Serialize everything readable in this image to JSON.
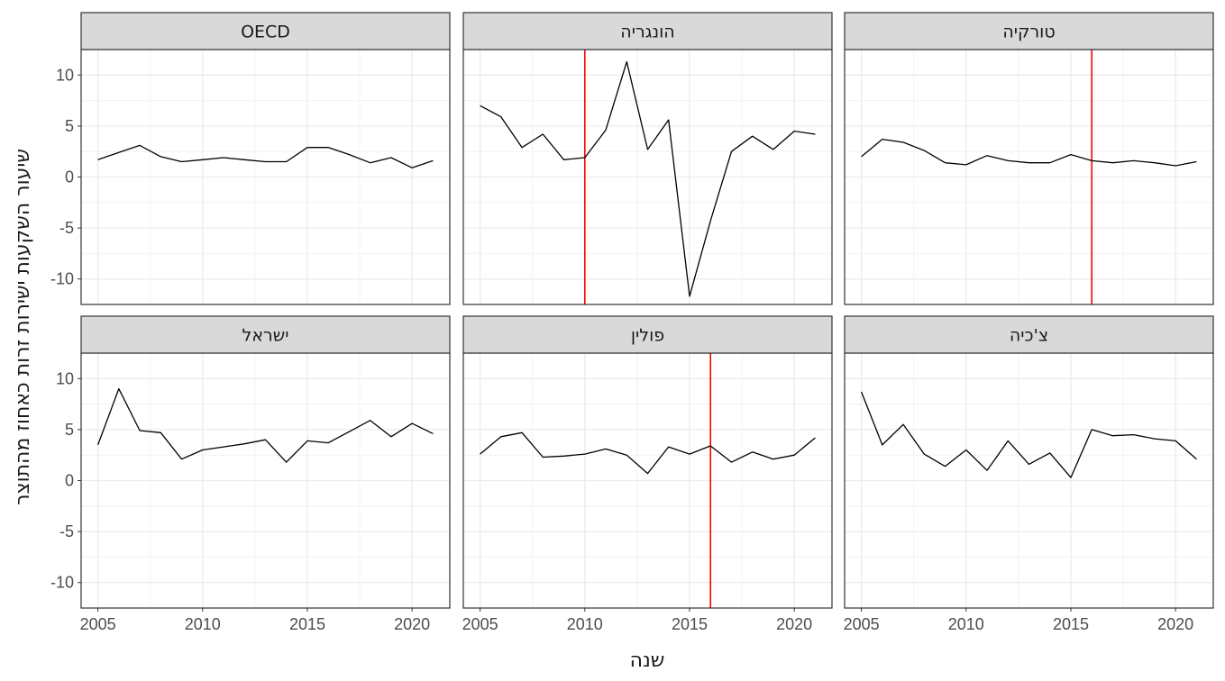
{
  "chart_data": {
    "type": "line",
    "xlabel": "שנה",
    "ylabel": "שיעור השקעות ישירות זרות כאחוז מהתוצר",
    "xlim": [
      2004.2,
      2021.8
    ],
    "ylim": [
      -12.5,
      12.5
    ],
    "x_ticks": [
      2005,
      2010,
      2015,
      2020
    ],
    "y_ticks": [
      -10,
      -5,
      0,
      5,
      10
    ],
    "grid": true,
    "x": [
      2005,
      2006,
      2007,
      2008,
      2009,
      2010,
      2011,
      2012,
      2013,
      2014,
      2015,
      2016,
      2017,
      2018,
      2019,
      2020,
      2021
    ],
    "line_color": "#000000",
    "marker_color": "#ff0000",
    "strip_fill": "#d9d9d9",
    "panels": [
      {
        "title": "OECD",
        "marker_year": null,
        "values": [
          1.7,
          2.4,
          3.1,
          2.0,
          1.5,
          1.7,
          1.9,
          1.7,
          1.5,
          1.5,
          2.9,
          2.9,
          2.2,
          1.4,
          1.9,
          0.9,
          1.6
        ]
      },
      {
        "title": "הונגריה",
        "marker_year": 2010,
        "values": [
          7.0,
          5.9,
          2.9,
          4.2,
          1.7,
          1.9,
          4.6,
          11.3,
          2.7,
          5.6,
          -11.7,
          -4.3,
          2.5,
          4.0,
          2.7,
          4.5,
          4.2
        ]
      },
      {
        "title": "טורקיה",
        "marker_year": 2016,
        "values": [
          2.0,
          3.7,
          3.4,
          2.6,
          1.4,
          1.2,
          2.1,
          1.6,
          1.4,
          1.4,
          2.2,
          1.6,
          1.4,
          1.6,
          1.4,
          1.1,
          1.5
        ]
      },
      {
        "title": "ישראל",
        "marker_year": null,
        "values": [
          3.5,
          9.0,
          4.9,
          4.7,
          2.1,
          3.0,
          3.3,
          3.6,
          4.0,
          1.8,
          3.9,
          3.7,
          4.8,
          5.9,
          4.3,
          5.6,
          4.6
        ]
      },
      {
        "title": "פולין",
        "marker_year": 2016,
        "values": [
          2.6,
          4.3,
          4.7,
          2.3,
          2.4,
          2.6,
          3.1,
          2.5,
          0.7,
          3.3,
          2.6,
          3.4,
          1.8,
          2.8,
          2.1,
          2.5,
          4.2
        ]
      },
      {
        "title": "צ'כיה",
        "marker_year": null,
        "values": [
          8.7,
          3.5,
          5.5,
          2.6,
          1.4,
          3.0,
          1.0,
          3.9,
          1.6,
          2.7,
          0.3,
          5.0,
          4.4,
          4.5,
          4.1,
          3.9,
          2.1
        ]
      }
    ]
  }
}
